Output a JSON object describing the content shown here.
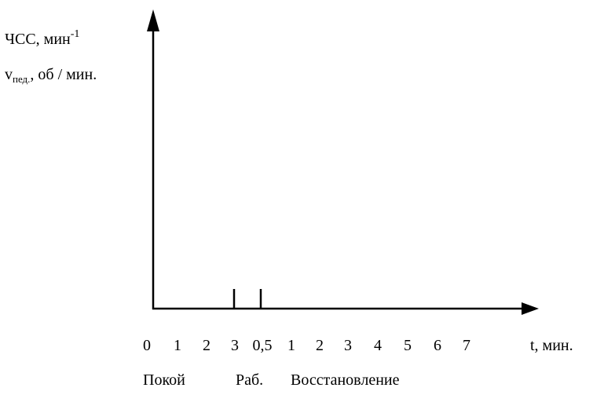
{
  "y_label": {
    "line1": {
      "text": "ЧСС, мин",
      "sup": "-1"
    },
    "line2": {
      "text": "v",
      "sub": "пед.",
      "rest": ", об / мин."
    }
  },
  "x_ticks": [
    "0",
    "1",
    "2",
    "3",
    "0,5",
    "1",
    "2",
    "3",
    "4",
    "5",
    "6",
    "7"
  ],
  "x_label": "t, мин.",
  "phases": [
    "Покой",
    "Раб.",
    "Восстановление"
  ]
}
